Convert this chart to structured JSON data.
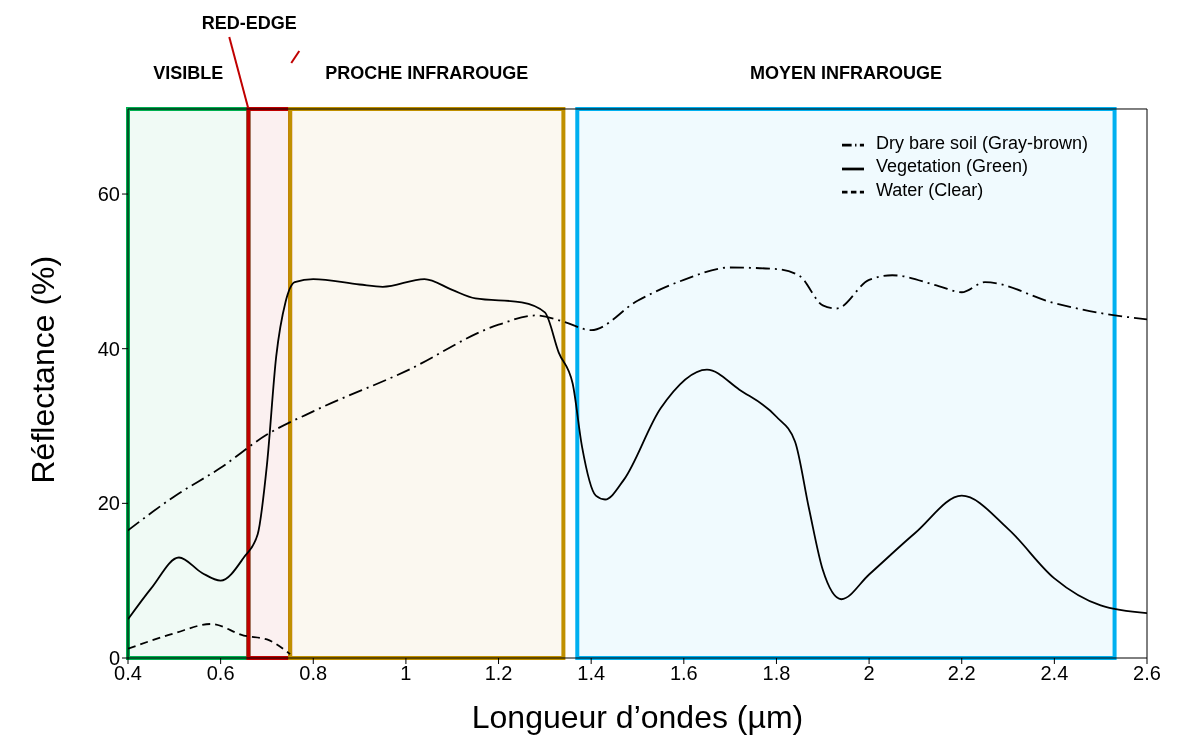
{
  "chart_data": {
    "type": "line",
    "xlabel": "Longueur d’ondes (µm)",
    "ylabel": "Réflectance (%)",
    "xlim": [
      0.4,
      2.6
    ],
    "xticks": [
      0.4,
      0.6,
      0.8,
      1.0,
      1.2,
      1.4,
      1.6,
      1.8,
      2.0,
      2.2,
      2.4,
      2.6
    ],
    "ylim": [
      0,
      71
    ],
    "yticks": [
      0,
      20,
      40,
      60
    ],
    "legend": "top right",
    "grid": false,
    "marker": "none",
    "series": [
      {
        "name": "Dry bare soil (Gray-brown)",
        "color": "#000000",
        "line_style": "dashdot",
        "x": [
          0.4,
          0.5,
          0.6,
          0.7,
          0.8,
          1.0,
          1.2,
          1.28,
          1.34,
          1.4,
          1.5,
          1.6,
          1.7,
          1.8,
          1.85,
          1.9,
          1.93,
          2.0,
          2.05,
          2.15,
          2.2,
          2.25,
          2.4,
          2.5,
          2.6
        ],
        "values": [
          16.5,
          20.9,
          24.6,
          28.9,
          31.9,
          37.1,
          43.1,
          44.3,
          43.5,
          42.4,
          46.2,
          48.9,
          50.5,
          50.3,
          49.4,
          45.6,
          45.2,
          48.9,
          49.5,
          48.1,
          47.3,
          48.6,
          45.9,
          44.6,
          43.8
        ]
      },
      {
        "name": "Vegetation (Green)",
        "color": "#000000",
        "line_style": "solid",
        "x": [
          0.4,
          0.45,
          0.51,
          0.56,
          0.6,
          0.65,
          0.68,
          0.7,
          0.72,
          0.74,
          0.76,
          0.8,
          0.9,
          0.95,
          1.04,
          1.1,
          1.15,
          1.25,
          1.3,
          1.33,
          1.36,
          1.38,
          1.41,
          1.43,
          1.47,
          1.55,
          1.65,
          1.72,
          1.8,
          1.84,
          1.87,
          1.9,
          1.94,
          2.0,
          2.1,
          2.2,
          2.3,
          2.4,
          2.5,
          2.6
        ],
        "values": [
          5,
          9,
          13,
          11,
          10,
          13,
          16,
          25,
          39,
          46,
          48.6,
          49,
          48.3,
          48,
          49,
          47.6,
          46.5,
          46,
          44.7,
          39.5,
          35.5,
          27.4,
          21,
          20.5,
          23,
          32.3,
          37.3,
          34.7,
          31.2,
          28,
          19.4,
          11.4,
          7.6,
          10.8,
          16.2,
          21,
          16.7,
          10.3,
          6.8,
          5.8
        ]
      },
      {
        "name": "Water (Clear)",
        "color": "#000000",
        "line_style": "dashed",
        "x": [
          0.4,
          0.5,
          0.58,
          0.65,
          0.7,
          0.75
        ],
        "values": [
          1.2,
          3.2,
          4.4,
          2.9,
          2.4,
          0.5
        ]
      }
    ],
    "bands": [
      {
        "axis": "x",
        "from": 0.4,
        "to": 0.66,
        "label": "VISIBLE",
        "color": "#00b050"
      },
      {
        "axis": "x",
        "from": 0.66,
        "to": 0.75,
        "label": "RED-EDGE",
        "color": "#c00000"
      },
      {
        "axis": "x",
        "from": 0.75,
        "to": 1.34,
        "label": "PROCHE INFRAROUGE",
        "color": "#c09000"
      },
      {
        "axis": "x",
        "from": 1.37,
        "to": 2.53,
        "label": "MOYEN INFRAROUGE",
        "color": "#00b0f0"
      }
    ]
  }
}
